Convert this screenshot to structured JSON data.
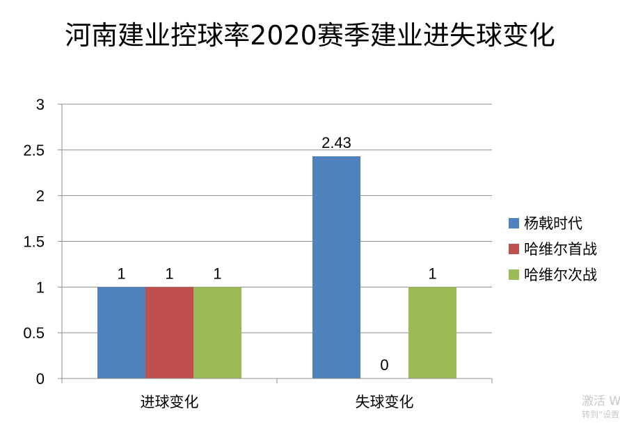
{
  "chart_data": {
    "type": "bar",
    "title": "河南建业控球率2020赛季建业进失球变化",
    "categories": [
      "进球变化",
      "失球变化"
    ],
    "series": [
      {
        "name": "杨戟时代",
        "values": [
          1,
          2.43
        ],
        "color": "#4f81bd"
      },
      {
        "name": "哈维尔首战",
        "values": [
          1,
          0
        ],
        "color": "#c0504d"
      },
      {
        "name": "哈维尔次战",
        "values": [
          1,
          1
        ],
        "color": "#9bbb59"
      }
    ],
    "ylim": [
      0,
      3
    ],
    "yticks": [
      "0",
      "0.5",
      "1",
      "1.5",
      "2",
      "2.5",
      "3"
    ],
    "data_labels": [
      [
        "1",
        "2.43"
      ],
      [
        "1",
        "0"
      ],
      [
        "1",
        "1"
      ]
    ],
    "grid": true,
    "legend_position": "right"
  },
  "watermark": {
    "line1": "激活 W",
    "line2": "转到“设置"
  }
}
